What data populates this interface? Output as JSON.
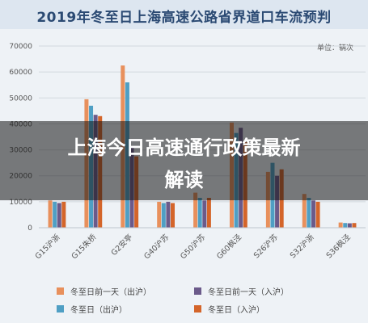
{
  "chart_data": {
    "type": "bar",
    "title": "2019年冬至日上海高速公路省界道口车流预判",
    "unit_label": "单位：辆次",
    "categories": [
      "G15沪浙",
      "G15朱桥",
      "G2安亭",
      "G40沪苏",
      "G50沪苏",
      "G60枫泾",
      "S26沪苏",
      "S32沪浙",
      "S36枫泾"
    ],
    "ylim": [
      0,
      70000
    ],
    "yticks": [
      "0",
      "10000",
      "20000",
      "30000",
      "40000",
      "50000",
      "60000",
      "70000"
    ],
    "grid": true,
    "legend_position": "bottom",
    "series": [
      {
        "name": "冬至日前一天（出沪）",
        "color": "#e8905c",
        "values": [
          10500,
          49500,
          62500,
          10000,
          13500,
          40500,
          21500,
          13000,
          2000
        ]
      },
      {
        "name": "冬至日（出沪）",
        "color": "#4f9fc4",
        "values": [
          10000,
          47000,
          56000,
          9500,
          11500,
          36500,
          25000,
          11500,
          1800
        ]
      },
      {
        "name": "冬至日前一天（入沪）",
        "color": "#6b5a8a",
        "values": [
          9500,
          43500,
          31000,
          10000,
          10500,
          38500,
          20000,
          10500,
          1700
        ]
      },
      {
        "name": "冬至日（入沪）",
        "color": "#d4652a",
        "values": [
          10000,
          43000,
          27500,
          9500,
          11500,
          33000,
          22500,
          10000,
          1800
        ]
      }
    ]
  },
  "overlay": {
    "line1": "上海今日高速通行政策最新",
    "line2": "解读"
  }
}
